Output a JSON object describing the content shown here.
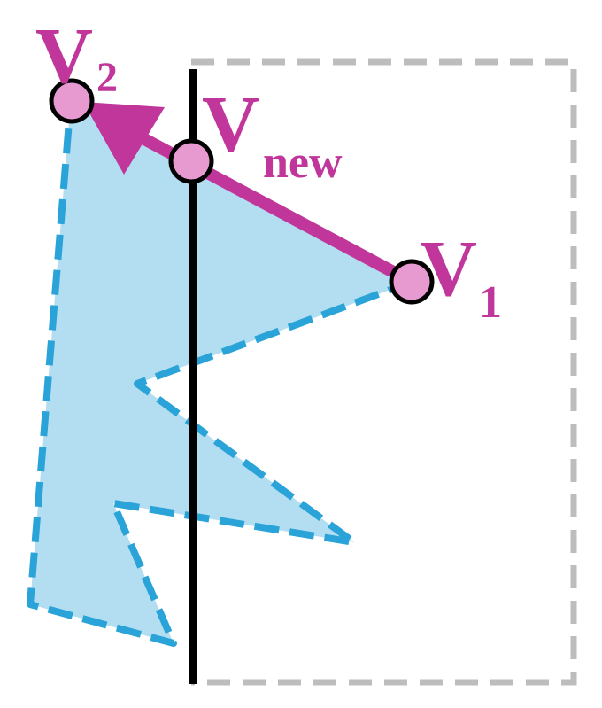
{
  "labels": {
    "v2": {
      "main": "V",
      "sub": "2"
    },
    "vnew": {
      "main": "V",
      "sub": "new"
    },
    "v1": {
      "main": "V",
      "sub": "1"
    }
  },
  "colors": {
    "polygon_fill": "#b3ddf0",
    "polygon_stroke": "#29a3d8",
    "clip_box": "#bdbdbd",
    "clip_line": "#000000",
    "edge_arrow": "#c0369a",
    "vertex_fill": "#e69acf",
    "vertex_stroke": "#000000",
    "label": "#c0369a"
  },
  "icons": {
    "vertex": "circle-dot",
    "edge": "arrow"
  }
}
